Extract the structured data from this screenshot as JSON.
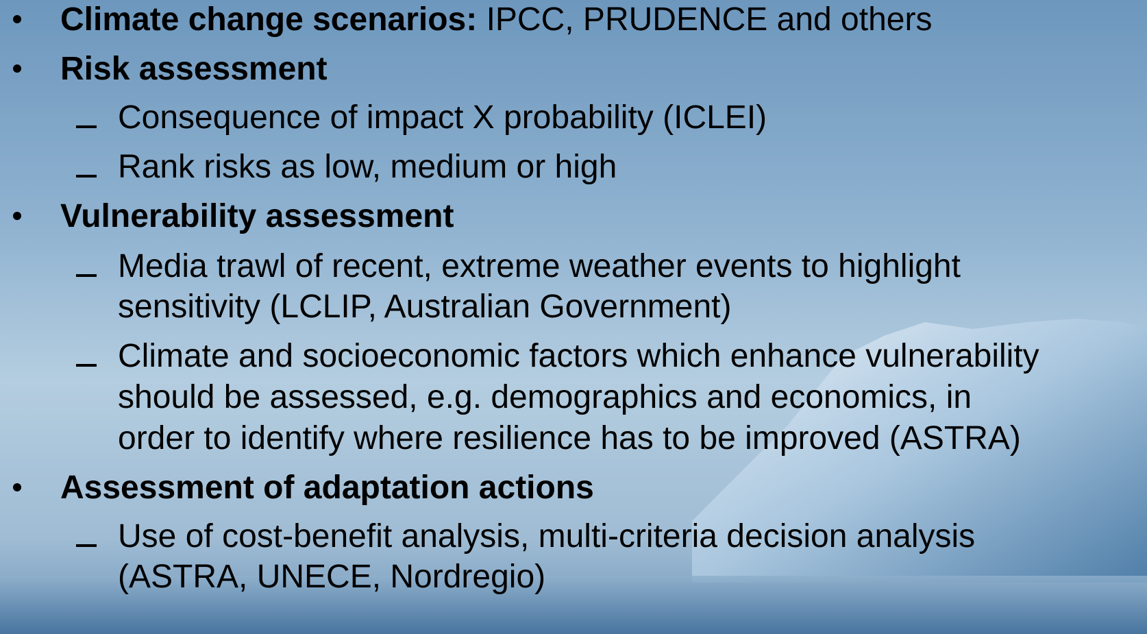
{
  "items": [
    {
      "label": "Climate change scenarios:",
      "text": "IPCC, PRUDENCE and others"
    },
    {
      "label": "Risk assessment",
      "subitems": [
        {
          "lines": [
            "Consequence of impact X probability (ICLEI)"
          ]
        },
        {
          "lines": [
            "Rank risks as low, medium or high"
          ]
        }
      ]
    },
    {
      "label": "Vulnerability assessment",
      "subitems": [
        {
          "lines": [
            "Media trawl of recent, extreme weather events to highlight",
            "sensitivity (LCLIP, Australian Government)"
          ]
        },
        {
          "lines": [
            "Climate and socioeconomic factors which enhance vulnerability",
            "should be assessed, e.g. demographics and economics, in",
            "order to identify where resilience has to be improved (ASTRA)"
          ]
        }
      ]
    },
    {
      "label": "Assessment of adaptation actions",
      "subitems": [
        {
          "lines": [
            "Use of cost-benefit analysis, multi-criteria decision analysis",
            "(ASTRA, UNECE, Nordregio)"
          ]
        }
      ]
    }
  ]
}
